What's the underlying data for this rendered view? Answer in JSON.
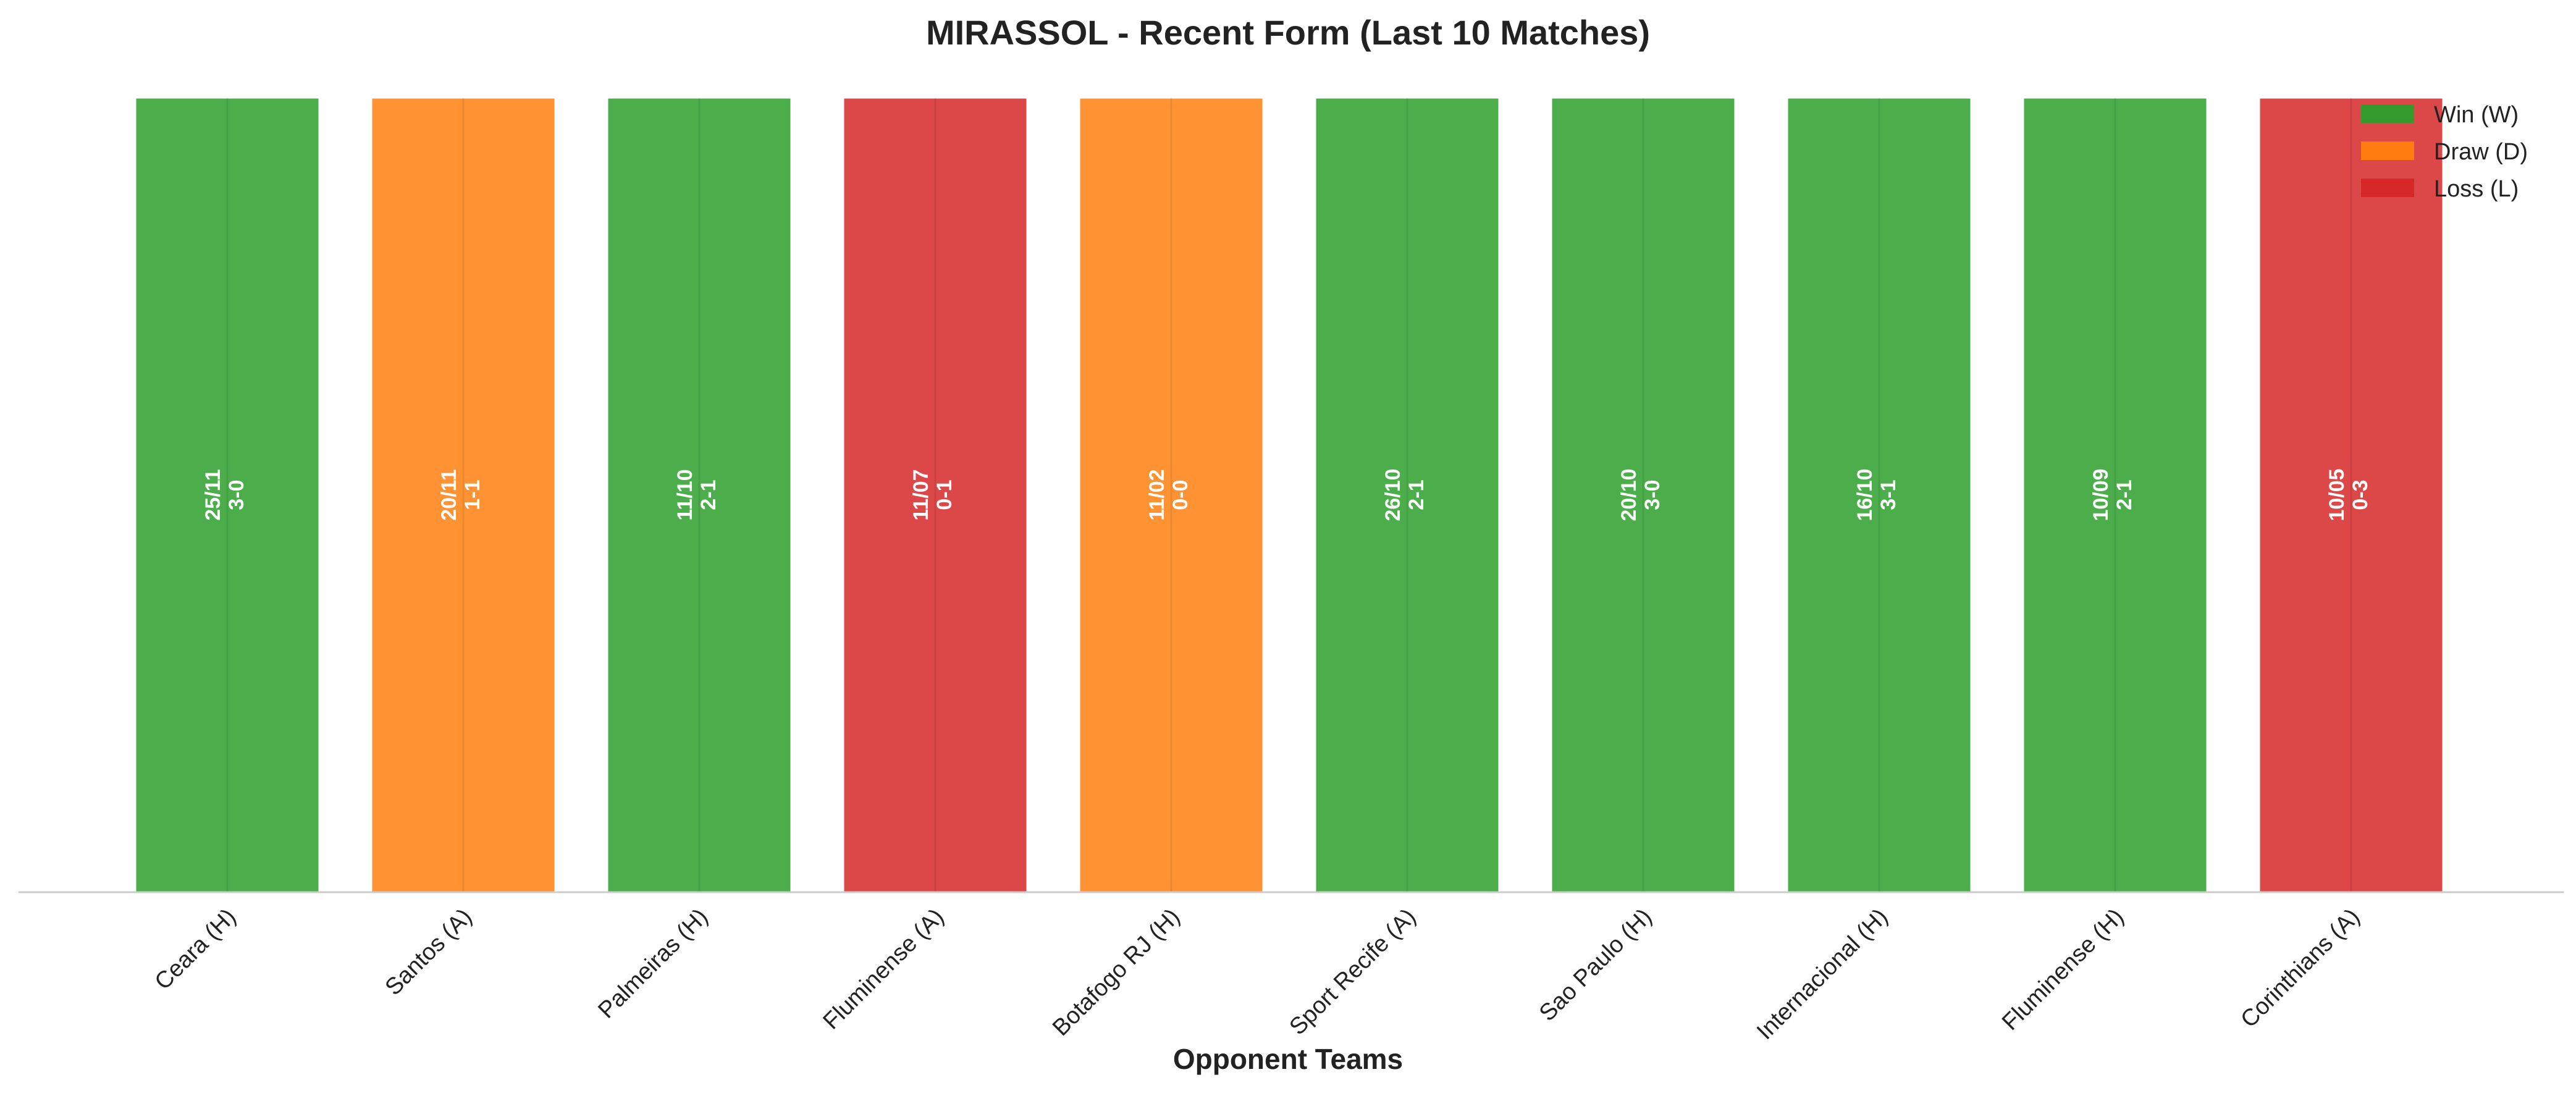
{
  "chart_data": {
    "type": "bar",
    "title": "MIRASSOL - Recent Form (Last 10 Matches)",
    "xlabel": "Opponent Teams",
    "ylabel": "",
    "ylim": [
      0,
      1
    ],
    "grid": false,
    "legend_position": "top-right",
    "categories": [
      "Ceara (H)",
      "Santos (A)",
      "Palmeiras (H)",
      "Fluminense (A)",
      "Botafogo RJ (H)",
      "Sport Recife (A)",
      "Sao Paulo (H)",
      "Internacional (H)",
      "Fluminense (H)",
      "Corinthians (A)"
    ],
    "values": [
      1,
      1,
      1,
      1,
      1,
      1,
      1,
      1,
      1,
      1
    ],
    "results": [
      "W",
      "D",
      "W",
      "L",
      "D",
      "W",
      "W",
      "W",
      "W",
      "L"
    ],
    "dates": [
      "25/11",
      "20/11",
      "11/10",
      "11/07",
      "11/02",
      "26/10",
      "20/10",
      "16/10",
      "10/09",
      "10/05"
    ],
    "scores": [
      "3-0",
      "1-1",
      "2-1",
      "0-1",
      "0-0",
      "2-1",
      "3-0",
      "3-1",
      "2-1",
      "0-3"
    ],
    "legend": [
      {
        "key": "W",
        "label": "Win (W)",
        "color": "#2ca02c"
      },
      {
        "key": "D",
        "label": "Draw (D)",
        "color": "#ff7f0e"
      },
      {
        "key": "L",
        "label": "Loss (L)",
        "color": "#d62728"
      }
    ],
    "colors": {
      "W": "#2ca02c",
      "D": "#ff7f0e",
      "L": "#d62728"
    }
  }
}
